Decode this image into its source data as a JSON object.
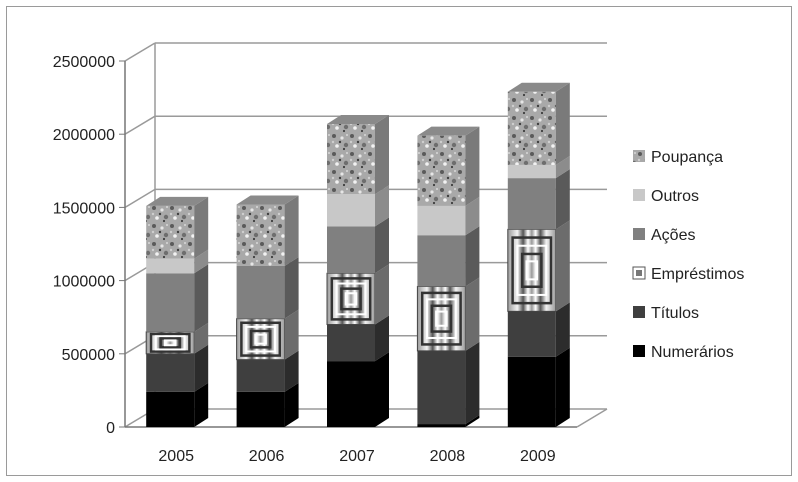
{
  "chart_data": {
    "type": "bar",
    "stacked": true,
    "style": "3d",
    "categories": [
      "2005",
      "2006",
      "2007",
      "2008",
      "2009"
    ],
    "ylim": [
      0,
      2500000
    ],
    "yticks": [
      "0",
      "500000",
      "1000000",
      "1500000",
      "2000000",
      "2500000"
    ],
    "grid": true,
    "legend_position": "right",
    "series": [
      {
        "name": "Numerários",
        "values": [
          240000,
          240000,
          450000,
          20000,
          480000
        ],
        "color": "#000000",
        "pattern": "solid"
      },
      {
        "name": "Títulos",
        "values": [
          260000,
          220000,
          250000,
          500000,
          310000
        ],
        "color": "#3f3f3f",
        "pattern": "solid"
      },
      {
        "name": "Empréstimos",
        "values": [
          150000,
          280000,
          350000,
          440000,
          560000
        ],
        "color": "#ffffff",
        "pattern": "concentric"
      },
      {
        "name": "Ações",
        "values": [
          400000,
          360000,
          320000,
          350000,
          350000
        ],
        "color": "#808080",
        "pattern": "solid"
      },
      {
        "name": "Outros",
        "values": [
          100000,
          0,
          220000,
          200000,
          90000
        ],
        "color": "#c8c8c8",
        "pattern": "solid"
      },
      {
        "name": "Poupança",
        "values": [
          360000,
          420000,
          480000,
          480000,
          500000
        ],
        "color": "#a0a0a0",
        "pattern": "granite"
      }
    ]
  }
}
